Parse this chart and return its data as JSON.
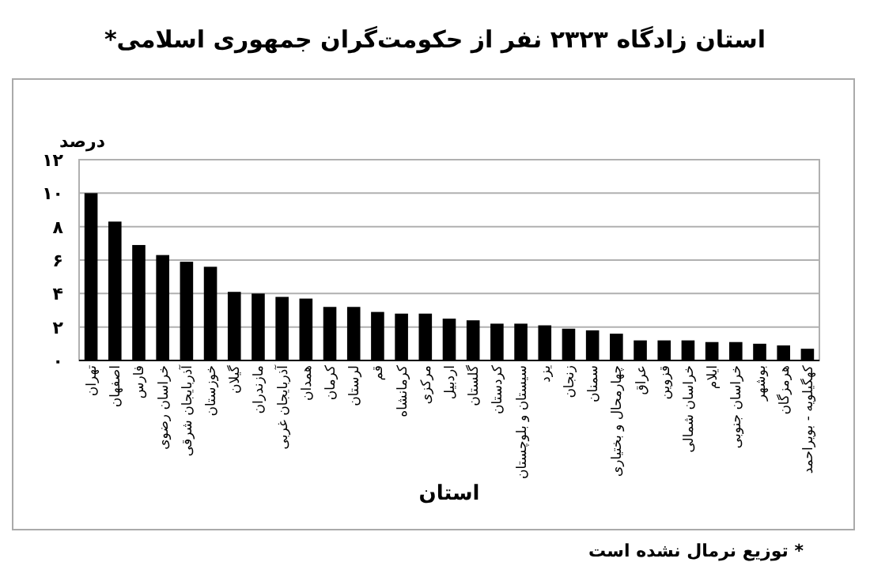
{
  "chart_data": {
    "type": "bar",
    "title": "استان زادگاه ۲۳۲۳ نفر از حکومت‌گران جمهوری اسلامی*",
    "xlabel": "استان",
    "ylabel": "درصد",
    "categories": [
      "تهران",
      "اصفهان",
      "فارس",
      "خراسان رضوی",
      "آذربایجان شرقی",
      "خوزستان",
      "گیلان",
      "مازندران",
      "آذربایجان غربی",
      "همدان",
      "کرمان",
      "لرستان",
      "قم",
      "کرمانشاه",
      "مرکزی",
      "اردبیل",
      "گلستان",
      "کردستان",
      "سیستان و بلوچستان",
      "یزد",
      "زنجان",
      "سمنان",
      "چهارمحال و بختیاری",
      "عراق",
      "قزوین",
      "خراسان شمالی",
      "ایلام",
      "خراسان جنوبی",
      "بوشهر",
      "هرمزگان",
      "کهگیلویه - بویراحمد"
    ],
    "values": [
      10.0,
      8.3,
      6.9,
      6.3,
      5.9,
      5.6,
      4.1,
      4.0,
      3.8,
      3.7,
      3.2,
      3.2,
      2.9,
      2.8,
      2.8,
      2.5,
      2.4,
      2.2,
      2.2,
      2.1,
      1.9,
      1.8,
      1.6,
      1.2,
      1.2,
      1.2,
      1.1,
      1.1,
      1.0,
      0.9,
      0.7
    ],
    "color": "#000000",
    "ylim": [
      0,
      12
    ],
    "yticks": [
      {
        "value": 0,
        "label": "۰"
      },
      {
        "value": 2,
        "label": "۲"
      },
      {
        "value": 4,
        "label": "۴"
      },
      {
        "value": 6,
        "label": "۶"
      },
      {
        "value": 8,
        "label": "۸"
      },
      {
        "value": 10,
        "label": "۱۰"
      },
      {
        "value": 12,
        "label": "۱۲"
      }
    ],
    "grid": "y",
    "annotations": [
      "* توزیع نرمال نشده است"
    ]
  }
}
